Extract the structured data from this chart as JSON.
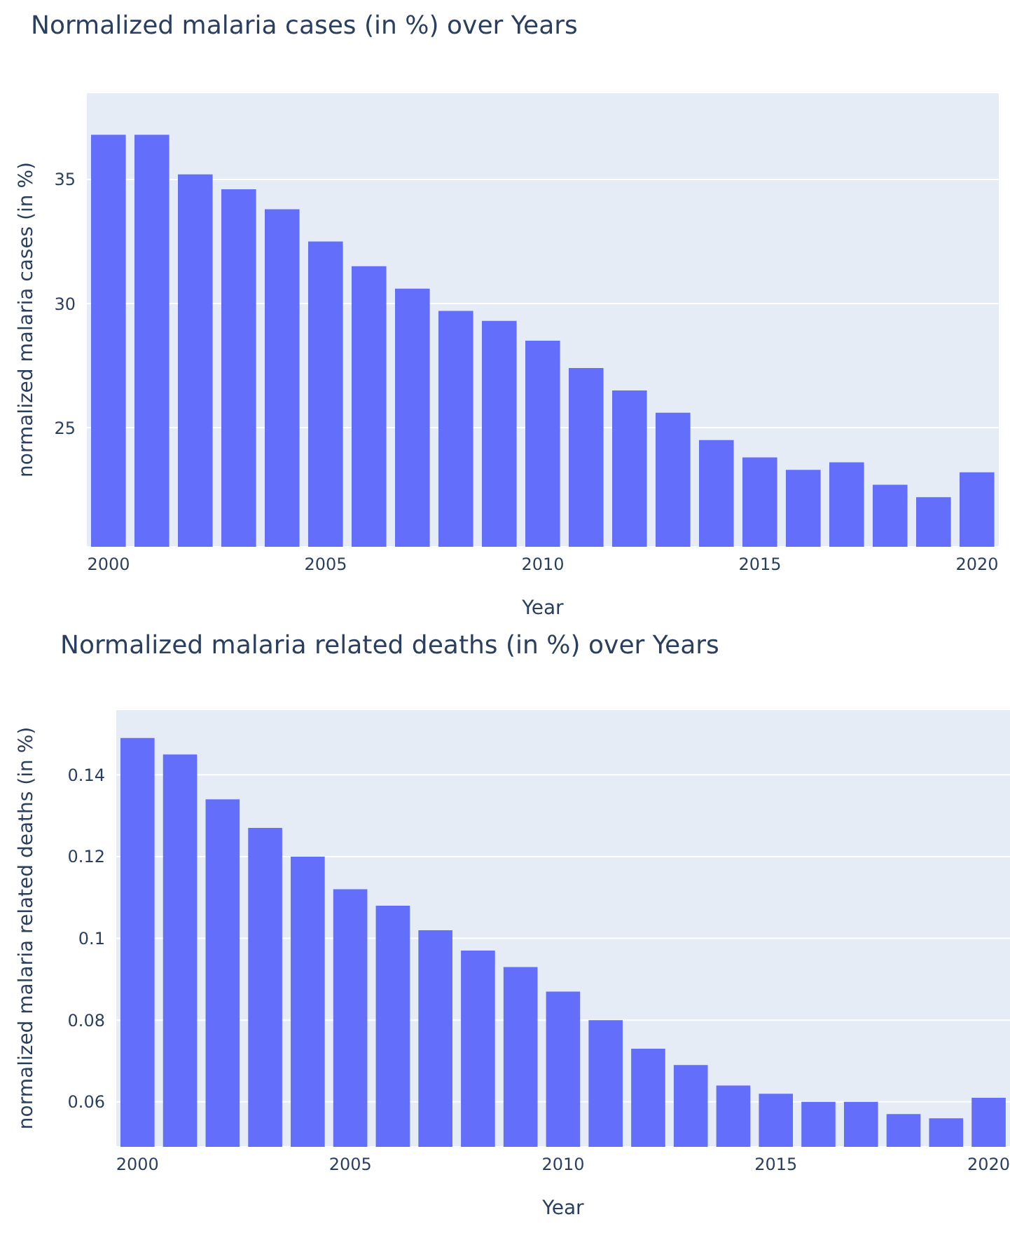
{
  "chart_data": [
    {
      "type": "bar",
      "title": "Normalized malaria cases (in %) over Years",
      "xlabel": "Year",
      "ylabel": "normalized malaria cases (in %)",
      "x": [
        2000,
        2001,
        2002,
        2003,
        2004,
        2005,
        2006,
        2007,
        2008,
        2009,
        2010,
        2011,
        2012,
        2013,
        2014,
        2015,
        2016,
        2017,
        2018,
        2019,
        2020
      ],
      "values": [
        36.8,
        36.8,
        35.2,
        34.6,
        33.8,
        32.5,
        31.5,
        30.6,
        29.7,
        29.3,
        28.5,
        27.4,
        26.5,
        25.6,
        24.5,
        23.8,
        23.3,
        23.6,
        22.7,
        22.2,
        23.2
      ],
      "color": "#636efa",
      "xlim": [
        1999.5,
        2020.5
      ],
      "xticks": [
        2000,
        2005,
        2010,
        2015,
        2020
      ],
      "ylim": [
        20.2,
        38.5
      ],
      "yticks": [
        25,
        30,
        35
      ],
      "grid": "y"
    },
    {
      "type": "bar",
      "title": "Normalized malaria related deaths (in %) over Years",
      "xlabel": "Year",
      "ylabel": "normalized malaria related deaths (in %)",
      "x": [
        2000,
        2001,
        2002,
        2003,
        2004,
        2005,
        2006,
        2007,
        2008,
        2009,
        2010,
        2011,
        2012,
        2013,
        2014,
        2015,
        2016,
        2017,
        2018,
        2019,
        2020
      ],
      "values": [
        0.149,
        0.145,
        0.134,
        0.127,
        0.12,
        0.112,
        0.108,
        0.102,
        0.097,
        0.093,
        0.087,
        0.08,
        0.073,
        0.069,
        0.064,
        0.062,
        0.06,
        0.06,
        0.057,
        0.056,
        0.061
      ],
      "color": "#636efa",
      "xlim": [
        1999.5,
        2020.5
      ],
      "xticks": [
        2000,
        2005,
        2010,
        2015,
        2020
      ],
      "ylim": [
        0.049,
        0.156
      ],
      "yticks": [
        0.06,
        0.08,
        0.1,
        0.12,
        0.14
      ],
      "grid": "y"
    }
  ]
}
